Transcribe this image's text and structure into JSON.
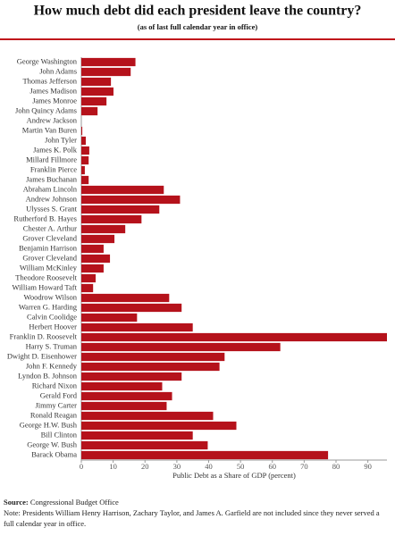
{
  "chart_data": {
    "type": "hbar",
    "title": "How much debt did each president leave the country?",
    "subtitle": "(as of last full calendar year in office)",
    "xlabel": "Public Debt as a Share of GDP (percent)",
    "categories": [
      "George Washington",
      "John Adams",
      "Thomas Jefferson",
      "James Madison",
      "James Monroe",
      "John Quincy Adams",
      "Andrew Jackson",
      "Martin Van Buren",
      "John Tyler",
      "James K. Polk",
      "Millard Fillmore",
      "Franklin Pierce",
      "James Buchanan",
      "Abraham Lincoln",
      "Andrew Johnson",
      "Ulysses S. Grant",
      "Rutherford B. Hayes",
      "Chester A. Arthur",
      "Grover Cleveland",
      "Benjamin Harrison",
      "Grover Cleveland",
      "William McKinley",
      "Theodore Roosevelt",
      "William Howard Taft",
      "Woodrow Wilson",
      "Warren G. Harding",
      "Calvin Coolidge",
      "Herbert Hoover",
      "Franklin D. Roosevelt",
      "Harry S. Truman",
      "Dwight D. Eisenhower",
      "John F. Kennedy",
      "Lyndon B. Johnson",
      "Richard Nixon",
      "Gerald Ford",
      "Jimmy Carter",
      "Ronald Reagan",
      "George H.W. Bush",
      "Bill Clinton",
      "George W. Bush",
      "Barack Obama"
    ],
    "values": [
      17,
      15.5,
      9.3,
      10.1,
      7.9,
      5.1,
      0,
      0.3,
      1.4,
      2.5,
      2.3,
      1.1,
      2.3,
      25.9,
      31,
      24.5,
      18.9,
      13.8,
      10.4,
      7,
      9,
      7,
      4.5,
      3.7,
      27.6,
      31.5,
      17.5,
      35,
      96,
      62.5,
      45,
      43.4,
      31.5,
      25.4,
      28.5,
      26.8,
      41.4,
      48.7,
      35,
      39.7,
      77.5
    ],
    "color": "#b5121b",
    "xlim": [
      0,
      96
    ],
    "xticks": [
      0,
      10,
      20,
      30,
      40,
      50,
      60,
      70,
      80,
      90
    ],
    "source": {
      "label": "Source:",
      "text": "Congressional Budget Office"
    },
    "note": "Note: Presidents William Henry Harrison, Zachary Taylor, and James A. Garfield are not included since they never served a full calendar year in office."
  }
}
